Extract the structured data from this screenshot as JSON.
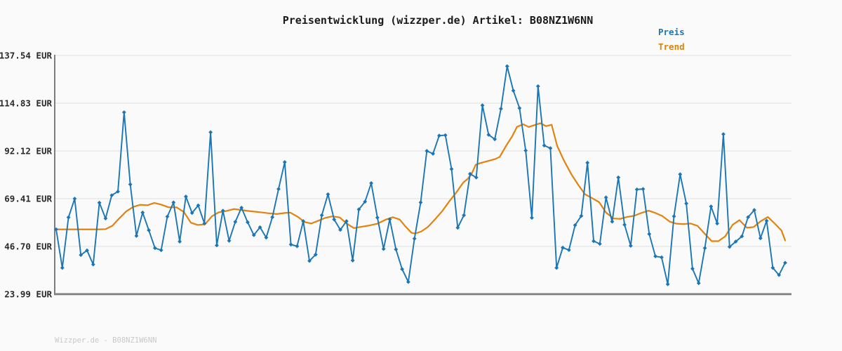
{
  "page": {
    "background": "#fafafa"
  },
  "header": {
    "title": "Preisentwicklung (wizzper.de) Artikel: B08NZ1W6NN"
  },
  "legend": {
    "position": "top-right",
    "items": [
      {
        "label": "Preis",
        "color": "#1b76b5"
      },
      {
        "label": "Trend",
        "color": "#dd8508"
      }
    ]
  },
  "footer": {
    "watermark": "Wizzper.de - B08NZ1W6NN"
  },
  "colors": {
    "preis_line": "#1b76b5",
    "trend_line": "#e1830e",
    "grid": "#e5e5e5",
    "axis": "#7d7d7d",
    "tick_text": "#2a2a2a",
    "background": "#fafafa"
  },
  "chart_data": {
    "type": "line",
    "title": "Preisentwicklung (wizzper.de) Artikel: B08NZ1W6NN",
    "currency": "EUR",
    "xlabel": "",
    "ylabel": "",
    "x_axis": {
      "tick_labels_visible": false,
      "num_points": 119
    },
    "grid": "horizontal",
    "legend_position": "top-right",
    "ylim": [
      23.99,
      137.54
    ],
    "yticks": [
      {
        "value": 137.54,
        "label": "137.54 EUR"
      },
      {
        "value": 114.83,
        "label": "114.83 EUR"
      },
      {
        "value": 92.12,
        "label": "92.12 EUR"
      },
      {
        "value": 69.41,
        "label": "69.41 EUR"
      },
      {
        "value": 46.7,
        "label": "46.70 EUR"
      },
      {
        "value": 23.99,
        "label": "23.99 EUR"
      }
    ],
    "series": [
      {
        "name": "Preis",
        "type": "line-with-markers",
        "marker": "diamond",
        "values": [
          54.8,
          36.5,
          60.5,
          69.4,
          42.6,
          44.8,
          38.1,
          67.5,
          60.0,
          71.0,
          72.8,
          110.5,
          76.2,
          51.7,
          62.8,
          54.4,
          45.9,
          44.9,
          60.9,
          67.6,
          49.0,
          70.4,
          62.6,
          66.2,
          57.6,
          101.0,
          47.2,
          63.7,
          49.4,
          58.4,
          65.1,
          58.2,
          52.1,
          55.8,
          50.9,
          60.6,
          74.0,
          86.8,
          47.6,
          46.8,
          58.7,
          39.8,
          42.8,
          61.5,
          71.5,
          59.5,
          54.6,
          58.7,
          40.0,
          64.3,
          68.0,
          76.8,
          60.4,
          45.5,
          59.6,
          45.3,
          35.9,
          29.8,
          50.4,
          67.6,
          92.1,
          90.8,
          99.4,
          99.6,
          83.5,
          55.6,
          61.5,
          81.2,
          79.5,
          113.8,
          99.8,
          97.7,
          112.2,
          132.4,
          120.8,
          112.5,
          92.3,
          60.3,
          122.9,
          94.7,
          93.4,
          36.5,
          46.1,
          45.0,
          56.8,
          61.2,
          86.5,
          49.2,
          47.9,
          70.0,
          58.5,
          79.5,
          57.0,
          47.0,
          73.8,
          74.0,
          52.6,
          42.0,
          41.5,
          28.7,
          61.0,
          81.0,
          67.1,
          36.1,
          29.2,
          45.9,
          65.7,
          57.6,
          100.1,
          46.5,
          49.0,
          51.5,
          60.6,
          64.0,
          50.6,
          58.9,
          36.5,
          33.1,
          38.9
        ]
      },
      {
        "name": "Trend",
        "type": "line",
        "marker": "none",
        "points": [
          [
            0,
            54.8
          ],
          [
            7,
            54.8
          ],
          [
            8,
            54.9
          ],
          [
            9.1,
            56.5
          ],
          [
            10.2,
            60
          ],
          [
            11.4,
            63.5
          ],
          [
            12.5,
            65.5
          ],
          [
            13.6,
            66.5
          ],
          [
            14.8,
            66.3
          ],
          [
            15.9,
            67.4
          ],
          [
            17,
            66.6
          ],
          [
            18.2,
            65.3
          ],
          [
            19.5,
            65.3
          ],
          [
            20.7,
            63
          ],
          [
            21.8,
            58
          ],
          [
            22.9,
            56.9
          ],
          [
            24.1,
            57.2
          ],
          [
            25.2,
            61
          ],
          [
            26.3,
            62.9
          ],
          [
            27.5,
            63.5
          ],
          [
            28.8,
            64.5
          ],
          [
            30.2,
            63.9
          ],
          [
            31.6,
            63.4
          ],
          [
            32.9,
            63
          ],
          [
            34.3,
            62.5
          ],
          [
            35.7,
            62.1
          ],
          [
            37,
            62.6
          ],
          [
            37.9,
            62.8
          ],
          [
            39.1,
            60.8
          ],
          [
            40.2,
            58.3
          ],
          [
            41.3,
            57.6
          ],
          [
            42.5,
            59
          ],
          [
            43.6,
            60.3
          ],
          [
            44.7,
            61
          ],
          [
            45.9,
            60.5
          ],
          [
            47,
            57.6
          ],
          [
            48.2,
            55.4
          ],
          [
            49.3,
            56
          ],
          [
            50.6,
            56.6
          ],
          [
            52,
            57.5
          ],
          [
            53.4,
            59.5
          ],
          [
            54.5,
            60.6
          ],
          [
            55.6,
            59.5
          ],
          [
            56.6,
            56
          ],
          [
            57.5,
            53.2
          ],
          [
            58.1,
            52.8
          ],
          [
            59.1,
            53.8
          ],
          [
            60.2,
            56
          ],
          [
            61.3,
            59.5
          ],
          [
            62.5,
            63.5
          ],
          [
            63.6,
            68
          ],
          [
            64.7,
            72.1
          ],
          [
            65.9,
            77.1
          ],
          [
            66.6,
            78.8
          ],
          [
            67.2,
            80.9
          ],
          [
            67.9,
            85.5
          ],
          [
            68.6,
            86.3
          ],
          [
            69.5,
            87
          ],
          [
            70.4,
            87.7
          ],
          [
            71.1,
            88.3
          ],
          [
            71.8,
            89.3
          ],
          [
            72.9,
            94.9
          ],
          [
            73.8,
            99
          ],
          [
            74.6,
            103.6
          ],
          [
            75.6,
            104.8
          ],
          [
            76.5,
            103.5
          ],
          [
            77.5,
            104.5
          ],
          [
            78.4,
            105.3
          ],
          [
            79.3,
            103.9
          ],
          [
            80.2,
            104.6
          ],
          [
            81.1,
            94.5
          ],
          [
            82.2,
            87.5
          ],
          [
            83.4,
            81
          ],
          [
            84.5,
            76
          ],
          [
            85.6,
            71.5
          ],
          [
            86.8,
            69.6
          ],
          [
            87.9,
            67.7
          ],
          [
            89,
            62.8
          ],
          [
            90.2,
            60
          ],
          [
            91.3,
            59.8
          ],
          [
            92.4,
            60.7
          ],
          [
            93.6,
            61.3
          ],
          [
            94.7,
            62.6
          ],
          [
            95.9,
            63.7
          ],
          [
            97,
            62.6
          ],
          [
            98.1,
            61.2
          ],
          [
            99.3,
            58.5
          ],
          [
            100.4,
            57.5
          ],
          [
            101.5,
            57.3
          ],
          [
            102.7,
            57.6
          ],
          [
            103.8,
            56.5
          ],
          [
            104.9,
            53
          ],
          [
            106.1,
            49.2
          ],
          [
            107.2,
            49.2
          ],
          [
            108.3,
            51.5
          ],
          [
            109.5,
            57
          ],
          [
            110.6,
            59.2
          ],
          [
            111.8,
            55.6
          ],
          [
            112.9,
            55.9
          ],
          [
            114,
            58.6
          ],
          [
            115.2,
            60.7
          ],
          [
            116.3,
            57.6
          ],
          [
            117.4,
            54.3
          ],
          [
            118,
            49.5
          ]
        ]
      }
    ]
  }
}
